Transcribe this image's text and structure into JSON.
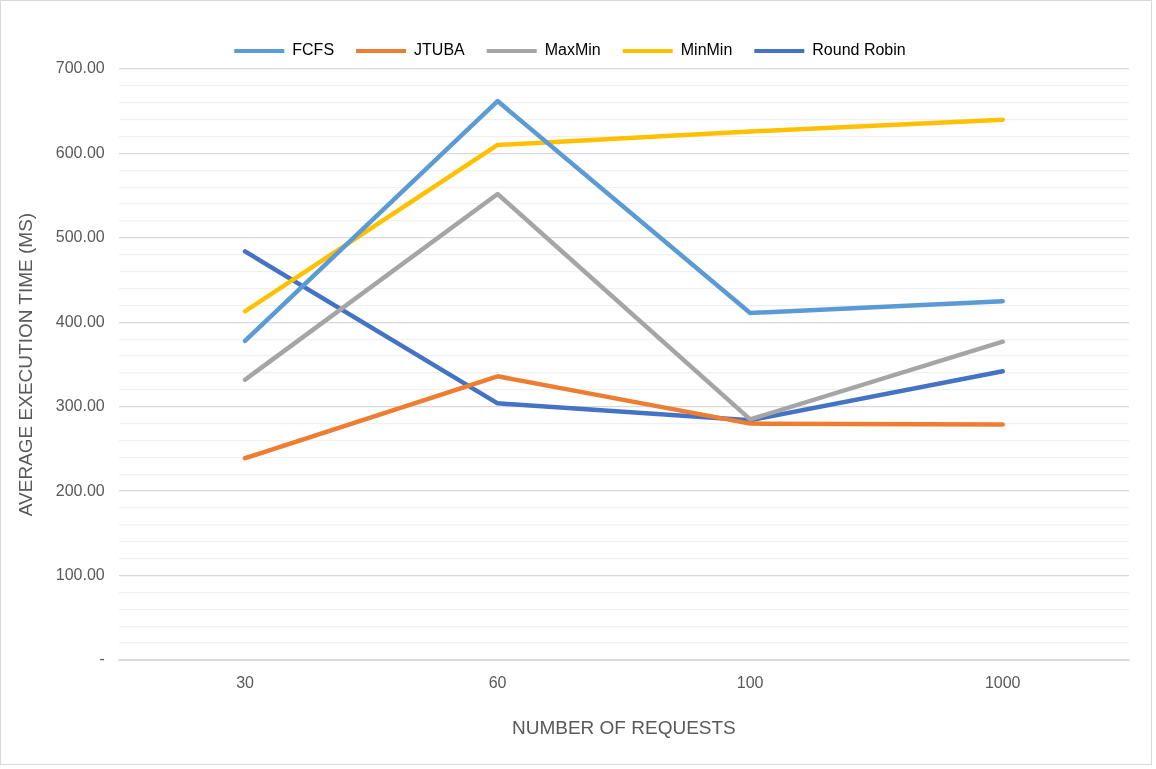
{
  "chart_data": {
    "type": "line",
    "xlabel": "NUMBER OF REQUESTS",
    "ylabel": "AVERAGE EXECUTION TIME (MS)",
    "categories": [
      "30",
      "60",
      "100",
      "1000"
    ],
    "series": [
      {
        "name": "FCFS",
        "color": "#5b9bd5",
        "values": [
          378,
          662,
          411,
          425
        ]
      },
      {
        "name": "JTUBA",
        "color": "#ed7d31",
        "values": [
          239,
          336,
          280,
          279
        ]
      },
      {
        "name": "MaxMin",
        "color": "#a5a5a5",
        "values": [
          332,
          552,
          285,
          377
        ]
      },
      {
        "name": "MinMin",
        "color": "#ffc000",
        "values": [
          413,
          610,
          626,
          640
        ]
      },
      {
        "name": "Round Robin",
        "color": "#4472c4",
        "values": [
          484,
          304,
          284,
          342
        ]
      }
    ],
    "ylim": [
      0,
      700
    ],
    "yticks": [
      {
        "value": 0,
        "label": "-"
      },
      {
        "value": 20,
        "label": null
      },
      {
        "value": 40,
        "label": null
      },
      {
        "value": 60,
        "label": null
      },
      {
        "value": 80,
        "label": null
      },
      {
        "value": 100,
        "label": "100.00"
      },
      {
        "value": 120,
        "label": null
      },
      {
        "value": 140,
        "label": null
      },
      {
        "value": 160,
        "label": null
      },
      {
        "value": 180,
        "label": null
      },
      {
        "value": 200,
        "label": "200.00"
      },
      {
        "value": 220,
        "label": null
      },
      {
        "value": 240,
        "label": null
      },
      {
        "value": 260,
        "label": null
      },
      {
        "value": 280,
        "label": null
      },
      {
        "value": 300,
        "label": "300.00"
      },
      {
        "value": 320,
        "label": null
      },
      {
        "value": 340,
        "label": null
      },
      {
        "value": 360,
        "label": null
      },
      {
        "value": 380,
        "label": null
      },
      {
        "value": 400,
        "label": "400.00"
      },
      {
        "value": 420,
        "label": null
      },
      {
        "value": 440,
        "label": null
      },
      {
        "value": 460,
        "label": null
      },
      {
        "value": 480,
        "label": null
      },
      {
        "value": 500,
        "label": "500.00"
      },
      {
        "value": 520,
        "label": null
      },
      {
        "value": 540,
        "label": null
      },
      {
        "value": 560,
        "label": null
      },
      {
        "value": 580,
        "label": null
      },
      {
        "value": 600,
        "label": "600.00"
      },
      {
        "value": 620,
        "label": null
      },
      {
        "value": 640,
        "label": null
      },
      {
        "value": 660,
        "label": null
      },
      {
        "value": 680,
        "label": null
      },
      {
        "value": 700,
        "label": "700.00"
      }
    ],
    "grid": "y",
    "legend": "top",
    "marker": "none",
    "line_style": "solid"
  }
}
